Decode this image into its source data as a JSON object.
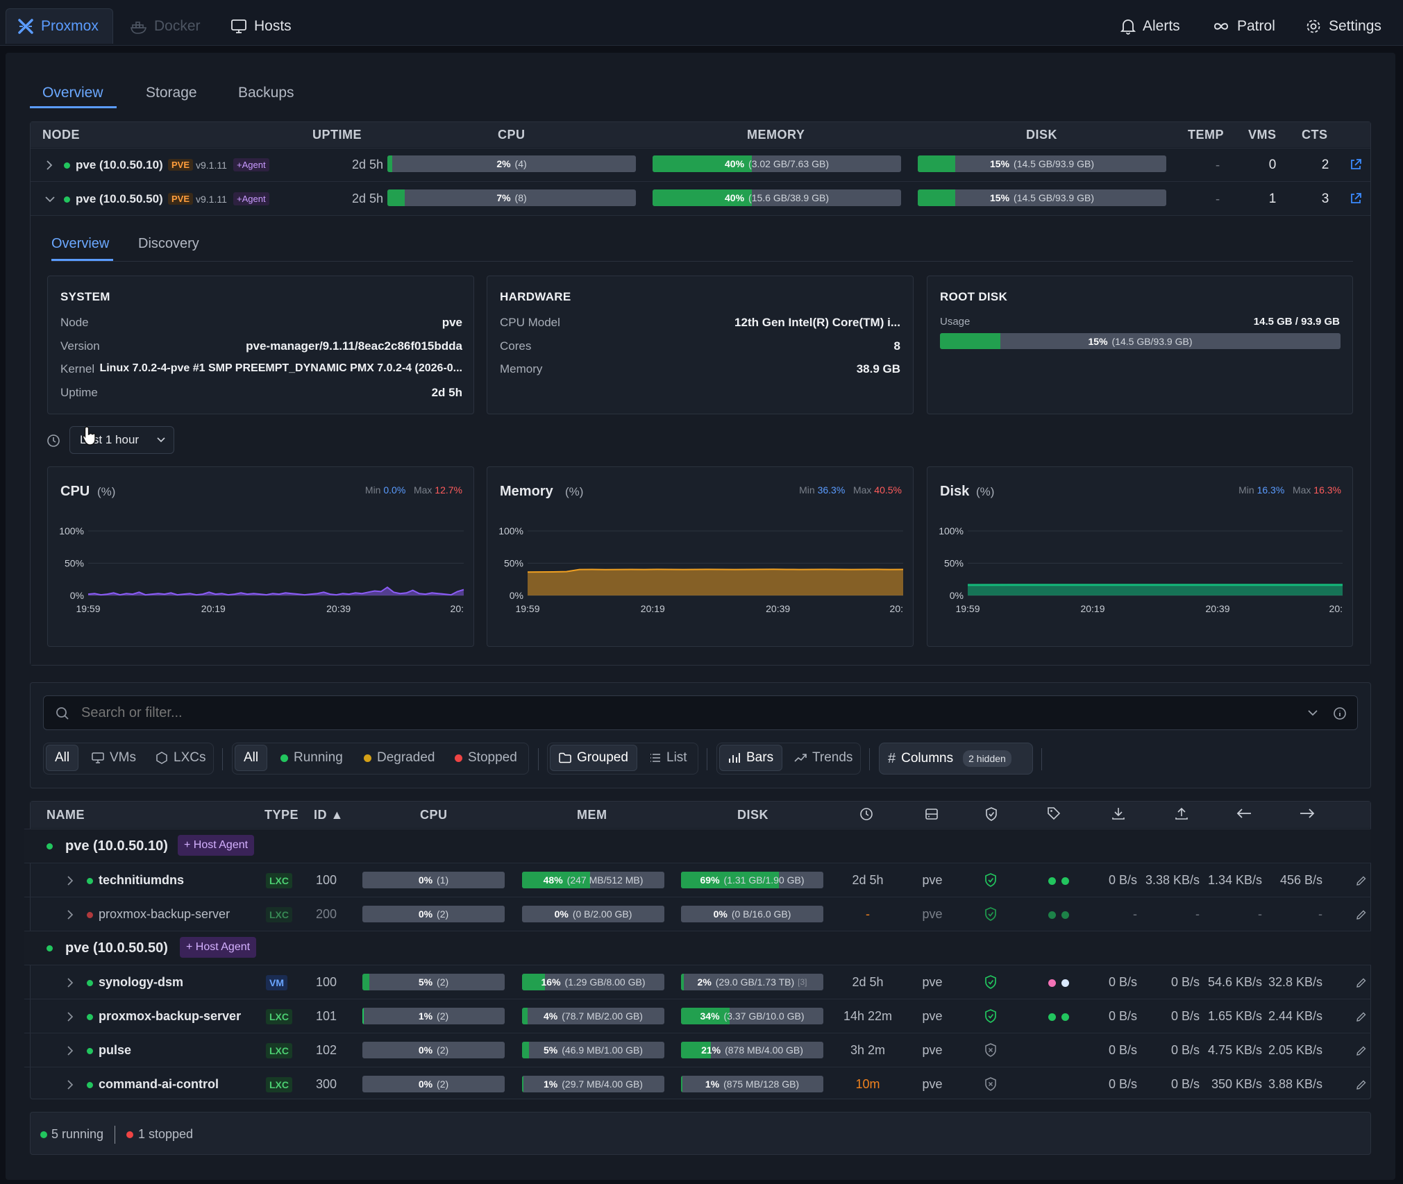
{
  "nav": {
    "tabs": [
      {
        "label": "Proxmox",
        "icon": "proxmox-icon"
      },
      {
        "label": "Docker",
        "icon": "docker-icon"
      },
      {
        "label": "Hosts",
        "icon": "monitor-icon"
      }
    ],
    "right": [
      {
        "label": "Alerts",
        "icon": "bell-icon"
      },
      {
        "label": "Patrol",
        "icon": "infinity-icon"
      },
      {
        "label": "Settings",
        "icon": "gear-icon"
      }
    ]
  },
  "subtabs": [
    "Overview",
    "Storage",
    "Backups"
  ],
  "node_table": {
    "headers": [
      "NODE",
      "UPTIME",
      "CPU",
      "MEMORY",
      "DISK",
      "TEMP",
      "VMS",
      "CTS"
    ],
    "rows": [
      {
        "name": "pve (10.0.50.10)",
        "badge": "PVE",
        "version": "v9.1.11",
        "agent": "+Agent",
        "uptime": "2d 5h",
        "cpu_pct": "2%",
        "cpu_detail": "(4)",
        "cpu": 0.02,
        "mem_pct": "40%",
        "mem_detail": "(3.02 GB/7.63 GB)",
        "mem": 0.4,
        "disk_pct": "15%",
        "disk_detail": "(14.5 GB/93.9 GB)",
        "disk": 0.15,
        "temp": "-",
        "vms": "0",
        "cts": "2",
        "expanded": false
      },
      {
        "name": "pve (10.0.50.50)",
        "badge": "PVE",
        "version": "v9.1.11",
        "agent": "+Agent",
        "uptime": "2d 5h",
        "cpu_pct": "7%",
        "cpu_detail": "(8)",
        "cpu": 0.07,
        "mem_pct": "40%",
        "mem_detail": "(15.6 GB/38.9 GB)",
        "mem": 0.4,
        "disk_pct": "15%",
        "disk_detail": "(14.5 GB/93.9 GB)",
        "disk": 0.15,
        "temp": "-",
        "vms": "1",
        "cts": "3",
        "expanded": true
      }
    ]
  },
  "detail": {
    "tabs": [
      "Overview",
      "Discovery"
    ],
    "system": {
      "title": "SYSTEM",
      "rows": [
        {
          "label": "Node",
          "value": "pve"
        },
        {
          "label": "Version",
          "value": "pve-manager/9.1.11/8eac2c86f015bdda"
        },
        {
          "label": "Kernel",
          "value": "Linux 7.0.2-4-pve #1 SMP PREEMPT_DYNAMIC PMX 7.0.2-4 (2026-0..."
        },
        {
          "label": "Uptime",
          "value": "2d 5h"
        }
      ]
    },
    "hardware": {
      "title": "HARDWARE",
      "rows": [
        {
          "label": "CPU Model",
          "value": "12th Gen Intel(R) Core(TM) i..."
        },
        {
          "label": "Cores",
          "value": "8"
        },
        {
          "label": "Memory",
          "value": "38.9 GB"
        }
      ]
    },
    "rootdisk": {
      "title": "ROOT DISK",
      "usage_label": "Usage",
      "usage_value": "14.5 GB / 93.9 GB",
      "pct": "15%",
      "detail": "(14.5 GB/93.9 GB)",
      "fraction": 0.15
    },
    "range": "Last 1 hour"
  },
  "charts": [
    {
      "title": "CPU",
      "unit": "(%)",
      "min_label": "Min",
      "min": "0.0%",
      "max_label": "Max",
      "max": "12.7%",
      "color": "#8b5cf6"
    },
    {
      "title": "Memory",
      "unit": "(%)",
      "min_label": "Min",
      "min": "36.3%",
      "max_label": "Max",
      "max": "40.5%",
      "color": "#f0a021"
    },
    {
      "title": "Disk",
      "unit": "(%)",
      "min_label": "Min",
      "min": "16.3%",
      "max_label": "Max",
      "max": "16.3%",
      "color": "#14b87a"
    }
  ],
  "chart_data": [
    {
      "type": "area",
      "title": "CPU",
      "ylabel": "%",
      "ylim": [
        0,
        100
      ],
      "yticks": [
        "100%",
        "50%",
        "0%"
      ],
      "xticks": [
        "19:59",
        "20:19",
        "20:39",
        "20:"
      ],
      "series": [
        {
          "values": [
            2,
            3,
            1,
            2,
            4,
            1,
            3,
            2,
            5,
            1,
            2,
            3,
            2,
            4,
            1,
            2,
            3,
            1,
            2,
            5,
            2,
            3,
            1,
            2,
            4,
            2,
            3,
            2,
            1,
            3,
            2,
            4,
            3,
            2,
            1,
            2,
            3,
            5,
            2,
            1,
            3,
            2,
            4,
            3,
            5,
            7,
            6,
            12.7,
            5,
            3,
            4,
            8,
            3,
            2,
            4,
            3,
            2,
            1,
            6,
            9
          ]
        }
      ]
    },
    {
      "type": "area",
      "title": "Memory",
      "ylabel": "%",
      "ylim": [
        0,
        100
      ],
      "yticks": [
        "100%",
        "50%",
        "0%"
      ],
      "xticks": [
        "19:59",
        "20:19",
        "20:39",
        "20:"
      ],
      "series": [
        {
          "values": [
            36.3,
            36.5,
            36.6,
            37.0,
            40.2,
            40.3,
            40.1,
            40.2,
            40.3,
            40.2,
            40.4,
            40.3,
            40.2,
            40.3,
            40.4,
            40.3,
            40.2,
            40.3,
            40.4,
            40.5,
            40.3,
            40.2,
            40.3,
            40.4,
            40.3,
            40.2,
            40.3,
            40.4,
            40.2,
            40.3
          ]
        }
      ]
    },
    {
      "type": "area",
      "title": "Disk",
      "ylabel": "%",
      "ylim": [
        0,
        100
      ],
      "yticks": [
        "100%",
        "50%",
        "0%"
      ],
      "xticks": [
        "19:59",
        "20:19",
        "20:39",
        "20:"
      ],
      "series": [
        {
          "values": [
            16.3,
            16.3,
            16.3,
            16.3,
            16.3,
            16.3,
            16.3,
            16.3,
            16.3,
            16.3
          ]
        }
      ]
    }
  ],
  "search": {
    "placeholder": "Search or filter..."
  },
  "filters": {
    "type": [
      {
        "label": "All"
      },
      {
        "label": "VMs"
      },
      {
        "label": "LXCs"
      }
    ],
    "status": [
      {
        "label": "All"
      },
      {
        "label": "Running",
        "color": "#22c55e"
      },
      {
        "label": "Degraded",
        "color": "#d4a017"
      },
      {
        "label": "Stopped",
        "color": "#ef4444"
      }
    ],
    "view": [
      {
        "label": "Grouped"
      },
      {
        "label": "List"
      }
    ],
    "display": [
      {
        "label": "Bars"
      },
      {
        "label": "Trends"
      }
    ],
    "columns_label": "Columns",
    "hidden_label": "2 hidden"
  },
  "guest_table": {
    "headers": [
      "NAME",
      "TYPE",
      "ID ▲",
      "CPU",
      "MEM",
      "DISK"
    ],
    "icon_headers": [
      "clock-icon",
      "server-icon",
      "shield-icon",
      "tag-icon",
      "download-icon",
      "upload-icon",
      "arrow-left-icon",
      "arrow-right-icon"
    ],
    "groups": [
      {
        "name": "pve (10.0.50.10)",
        "agent": "+ Host Agent",
        "rows": [
          {
            "name": "technitiumdns",
            "status": "running",
            "type": "LXC",
            "id": "100",
            "cpu_pct": "0%",
            "cpu_detail": "(1)",
            "cpu": 0.0,
            "mem_pct": "48%",
            "mem_detail": "(247 MB/512 MB)",
            "mem": 0.48,
            "disk_pct": "69%",
            "disk_detail": "(1.31 GB/1.90 GB)",
            "disk": 0.69,
            "uptime": "2d 5h",
            "node": "pve",
            "shield": "ok",
            "tags": [
              "#22c55e",
              "#22c55e"
            ],
            "dread": "0 B/s",
            "dwrite": "3.38 KB/s",
            "netin": "1.34 KB/s",
            "netout": "456 B/s"
          },
          {
            "name": "proxmox-backup-server",
            "status": "stopped",
            "type": "LXC",
            "id": "200",
            "cpu_pct": "0%",
            "cpu_detail": "(2)",
            "cpu": 0.0,
            "mem_pct": "0%",
            "mem_detail": "(0 B/2.00 GB)",
            "mem": 0.0,
            "disk_pct": "0%",
            "disk_detail": "(0 B/16.0 GB)",
            "disk": 0.0,
            "uptime": "-",
            "node": "pve",
            "shield": "ok",
            "tags": [
              "#22c55e",
              "#22c55e"
            ],
            "dread": "-",
            "dwrite": "-",
            "netin": "-",
            "netout": "-"
          }
        ]
      },
      {
        "name": "pve (10.0.50.50)",
        "agent": "+ Host Agent",
        "rows": [
          {
            "name": "synology-dsm",
            "status": "running",
            "type": "VM",
            "id": "100",
            "cpu_pct": "5%",
            "cpu_detail": "(2)",
            "cpu": 0.05,
            "mem_pct": "16%",
            "mem_detail": "(1.29 GB/8.00 GB)",
            "mem": 0.16,
            "disk_pct": "2%",
            "disk_detail": "(29.0 GB/1.73 TB)",
            "disk_extra": "[3]",
            "disk": 0.02,
            "uptime": "2d 5h",
            "node": "pve",
            "shield": "ok",
            "tags": [
              "#f472b6",
              "#dbeafe"
            ],
            "dread": "0 B/s",
            "dwrite": "0 B/s",
            "netin": "54.6 KB/s",
            "netout": "32.8 KB/s"
          },
          {
            "name": "proxmox-backup-server",
            "status": "running",
            "type": "LXC",
            "id": "101",
            "cpu_pct": "1%",
            "cpu_detail": "(2)",
            "cpu": 0.01,
            "mem_pct": "4%",
            "mem_detail": "(78.7 MB/2.00 GB)",
            "mem": 0.04,
            "disk_pct": "34%",
            "disk_detail": "(3.37 GB/10.0 GB)",
            "disk": 0.34,
            "uptime": "14h 22m",
            "node": "pve",
            "shield": "ok",
            "tags": [
              "#22c55e",
              "#22c55e"
            ],
            "dread": "0 B/s",
            "dwrite": "0 B/s",
            "netin": "1.65 KB/s",
            "netout": "2.44 KB/s"
          },
          {
            "name": "pulse",
            "status": "running",
            "type": "LXC",
            "id": "102",
            "cpu_pct": "0%",
            "cpu_detail": "(2)",
            "cpu": 0.0,
            "mem_pct": "5%",
            "mem_detail": "(46.9 MB/1.00 GB)",
            "mem": 0.05,
            "disk_pct": "21%",
            "disk_detail": "(878 MB/4.00 GB)",
            "disk": 0.21,
            "uptime": "3h 2m",
            "node": "pve",
            "shield": "off",
            "tags": [],
            "dread": "0 B/s",
            "dwrite": "0 B/s",
            "netin": "4.75 KB/s",
            "netout": "2.05 KB/s"
          },
          {
            "name": "command-ai-control",
            "status": "running",
            "type": "LXC",
            "id": "300",
            "cpu_pct": "0%",
            "cpu_detail": "(2)",
            "cpu": 0.0,
            "mem_pct": "1%",
            "mem_detail": "(29.7 MB/4.00 GB)",
            "mem": 0.01,
            "disk_pct": "1%",
            "disk_detail": "(875 MB/128 GB)",
            "disk": 0.01,
            "uptime": "10m",
            "uptime_warn": true,
            "node": "pve",
            "shield": "off",
            "tags": [],
            "dread": "0 B/s",
            "dwrite": "0 B/s",
            "netin": "350 KB/s",
            "netout": "3.88 KB/s"
          }
        ]
      }
    ]
  },
  "footer": {
    "running": "5 running",
    "stopped": "1 stopped"
  }
}
